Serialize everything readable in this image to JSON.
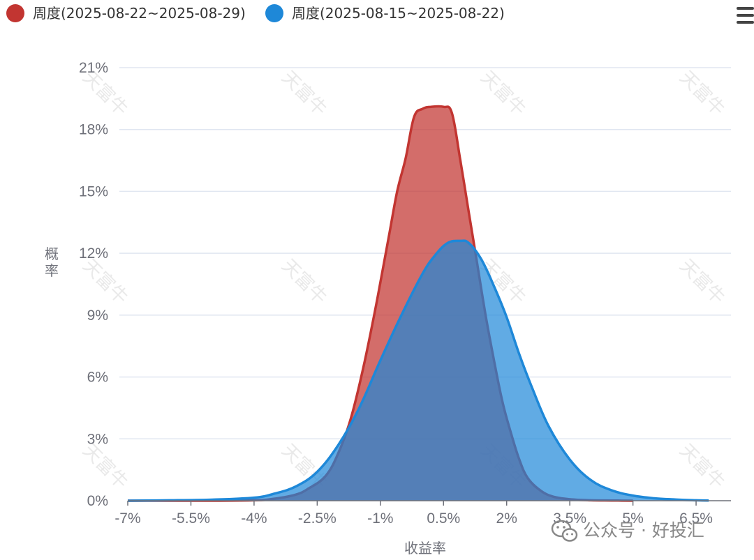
{
  "chart_data": {
    "type": "area",
    "title": "",
    "xlabel": "收益率",
    "ylabel": "概率",
    "x_tick_labels": [
      "-7%",
      "-5.5%",
      "-4%",
      "-2.5%",
      "-1%",
      "0.5%",
      "2%",
      "3.5%",
      "5%",
      "6.5%"
    ],
    "y_tick_labels": [
      "0%",
      "3%",
      "6%",
      "9%",
      "12%",
      "15%",
      "18%",
      "21%"
    ],
    "xlim": [
      -7.0,
      7.0
    ],
    "ylim": [
      0,
      21
    ],
    "grid": true,
    "legend_position": "top-left",
    "series": [
      {
        "name": "周度(2025-08-22~2025-08-29)",
        "color": "#c23531",
        "fill": "rgba(194,53,49,0.72)",
        "x": [
          -7.0,
          -6.0,
          -5.0,
          -4.0,
          -3.5,
          -3.0,
          -2.7,
          -2.3,
          -2.0,
          -1.7,
          -1.4,
          -1.1,
          -0.8,
          -0.6,
          -0.4,
          -0.2,
          0.0,
          0.2,
          0.5,
          0.7,
          0.9,
          1.1,
          1.3,
          1.5,
          1.7,
          1.9,
          2.1,
          2.3,
          2.5,
          2.8,
          3.1,
          3.5,
          4.0,
          4.5,
          5.0
        ],
        "y": [
          0,
          0,
          0,
          0.02,
          0.1,
          0.3,
          0.6,
          1.2,
          2.3,
          4.0,
          6.5,
          9.5,
          12.8,
          15.0,
          16.6,
          18.6,
          19.0,
          19.1,
          19.1,
          18.8,
          16.5,
          14.0,
          11.5,
          9.0,
          6.8,
          4.8,
          3.3,
          2.0,
          1.1,
          0.5,
          0.2,
          0.07,
          0.02,
          0.01,
          0
        ]
      },
      {
        "name": "周度(2025-08-15~2025-08-22)",
        "color": "#1e88d8",
        "fill": "rgba(30,136,216,0.70)",
        "x": [
          -7.0,
          -6.0,
          -5.0,
          -4.0,
          -3.5,
          -3.0,
          -2.5,
          -2.0,
          -1.5,
          -1.0,
          -0.5,
          0.0,
          0.3,
          0.6,
          0.9,
          1.1,
          1.4,
          1.7,
          2.0,
          2.3,
          2.6,
          3.0,
          3.5,
          4.0,
          4.5,
          5.0,
          5.5,
          6.0,
          6.5,
          6.8
        ],
        "y": [
          0,
          0.02,
          0.05,
          0.15,
          0.35,
          0.7,
          1.4,
          2.7,
          4.5,
          6.8,
          9.0,
          11.0,
          11.9,
          12.5,
          12.6,
          12.5,
          11.7,
          10.4,
          8.9,
          7.1,
          5.5,
          3.6,
          2.0,
          1.0,
          0.5,
          0.25,
          0.12,
          0.06,
          0.02,
          0.01
        ]
      }
    ]
  },
  "watermark": "天富牛",
  "footer_brand": {
    "icon": "wechat-icon",
    "text": "公众号 · 好投汇"
  },
  "menu": {
    "icon": "hamburger-menu-icon"
  }
}
